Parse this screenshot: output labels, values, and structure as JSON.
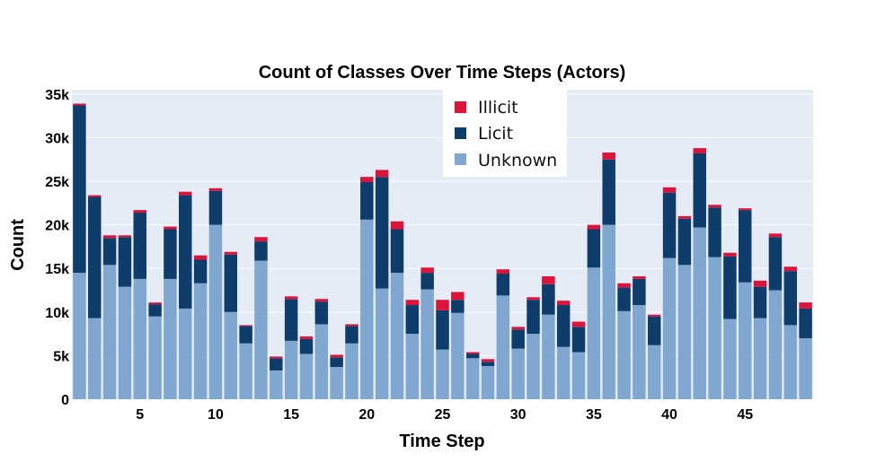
{
  "chart_data": {
    "type": "bar",
    "stacked": true,
    "title": "Count of Classes Over Time Steps (Actors)",
    "xlabel": "Time Step",
    "ylabel": "Count",
    "x": [
      1,
      2,
      3,
      4,
      5,
      6,
      7,
      8,
      9,
      10,
      11,
      12,
      13,
      14,
      15,
      16,
      17,
      18,
      19,
      20,
      21,
      22,
      23,
      24,
      25,
      26,
      27,
      28,
      29,
      30,
      31,
      32,
      33,
      34,
      35,
      36,
      37,
      38,
      39,
      40,
      41,
      42,
      43,
      44,
      45,
      46,
      47,
      48,
      49
    ],
    "xticks": [
      "5",
      "10",
      "15",
      "20",
      "25",
      "30",
      "35",
      "40",
      "45"
    ],
    "xtick_values": [
      5,
      10,
      15,
      20,
      25,
      30,
      35,
      40,
      45
    ],
    "ylim": [
      0,
      35500
    ],
    "yticks": [
      "0",
      "5k",
      "10k",
      "15k",
      "20k",
      "25k",
      "30k",
      "35k"
    ],
    "ytick_values": [
      0,
      5000,
      10000,
      15000,
      20000,
      25000,
      30000,
      35000
    ],
    "grid": true,
    "legend_position": "top-center",
    "series": [
      {
        "name": "Unknown",
        "color": "#7fa7cf",
        "values": [
          14500,
          9300,
          15400,
          12900,
          13800,
          9500,
          13800,
          10400,
          13300,
          20000,
          10000,
          6400,
          15900,
          3300,
          6700,
          5200,
          8600,
          3700,
          6400,
          20600,
          12700,
          14500,
          7500,
          12600,
          5700,
          9900,
          4700,
          3800,
          11900,
          5800,
          7500,
          9700,
          6000,
          5400,
          15100,
          20000,
          10100,
          10800,
          6200,
          16200,
          15400,
          19700,
          16300,
          9200,
          13400,
          9300,
          12500,
          8500,
          7000
        ]
      },
      {
        "name": "Licit",
        "color": "#0f3d6b",
        "values": [
          19200,
          13900,
          3100,
          5700,
          7600,
          1400,
          5700,
          13000,
          2700,
          3900,
          6600,
          2000,
          2200,
          1400,
          4800,
          1700,
          2600,
          1100,
          2000,
          4300,
          12800,
          5000,
          3300,
          1900,
          4500,
          1500,
          500,
          500,
          2500,
          2200,
          3900,
          3500,
          4800,
          2900,
          4400,
          7500,
          2700,
          3000,
          3300,
          7500,
          5300,
          8500,
          5700,
          7200,
          8300,
          3600,
          6100,
          6200,
          3400
        ]
      },
      {
        "name": "Illicit",
        "color": "#dc143c",
        "values": [
          200,
          200,
          300,
          200,
          300,
          200,
          300,
          400,
          500,
          300,
          300,
          100,
          500,
          200,
          300,
          300,
          300,
          300,
          200,
          600,
          800,
          900,
          600,
          600,
          1200,
          900,
          200,
          300,
          500,
          300,
          300,
          900,
          500,
          600,
          500,
          800,
          500,
          300,
          200,
          600,
          300,
          600,
          300,
          400,
          200,
          700,
          400,
          500,
          700
        ]
      }
    ]
  }
}
